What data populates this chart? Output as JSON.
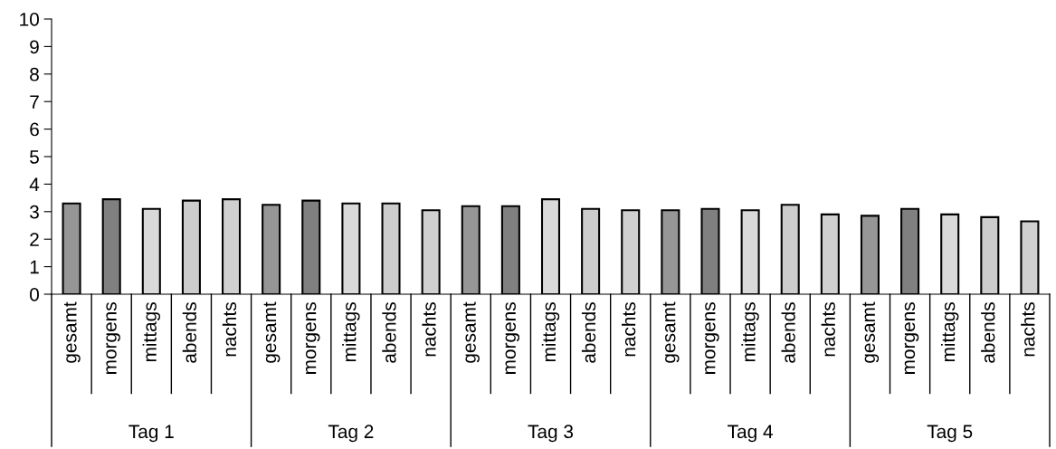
{
  "chart_data": {
    "type": "bar",
    "categories": [
      "gesamt",
      "morgens",
      "mittags",
      "abends",
      "nachts",
      "gesamt",
      "morgens",
      "mittags",
      "abends",
      "nachts",
      "gesamt",
      "morgens",
      "mittags",
      "abends",
      "nachts",
      "gesamt",
      "morgens",
      "mittags",
      "abends",
      "nachts",
      "gesamt",
      "morgens",
      "mittags",
      "abends",
      "nachts"
    ],
    "values": [
      3.3,
      3.45,
      3.1,
      3.4,
      3.45,
      3.25,
      3.4,
      3.3,
      3.3,
      3.05,
      3.2,
      3.2,
      3.45,
      3.1,
      3.05,
      3.05,
      3.1,
      3.05,
      3.25,
      2.9,
      2.85,
      3.1,
      2.9,
      2.8,
      2.65
    ],
    "colors": [
      "#969696",
      "#808080",
      "#d9d9d9",
      "#cccccc",
      "#d0d0d0",
      "#969696",
      "#808080",
      "#d9d9d9",
      "#cccccc",
      "#d0d0d0",
      "#969696",
      "#808080",
      "#d9d9d9",
      "#cccccc",
      "#d0d0d0",
      "#969696",
      "#808080",
      "#d9d9d9",
      "#cccccc",
      "#d0d0d0",
      "#969696",
      "#808080",
      "#d9d9d9",
      "#cccccc",
      "#d0d0d0"
    ],
    "annotations": [
      "Tag 1",
      "Tag 2",
      "Tag 3",
      "Tag 4",
      "Tag 5"
    ],
    "ylim": [
      0,
      10
    ],
    "yticks": [
      0,
      1,
      2,
      3,
      4,
      5,
      6,
      7,
      8,
      9,
      10
    ],
    "grid": false,
    "legend": false
  }
}
